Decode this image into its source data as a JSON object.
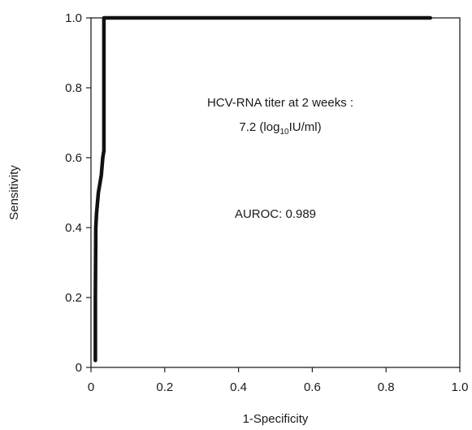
{
  "chart_data": {
    "type": "line",
    "title": "",
    "xlabel": "1-Specificity",
    "ylabel": "Sensitivity",
    "xlim": [
      0,
      1.0
    ],
    "ylim": [
      0,
      1.0
    ],
    "xticks": [
      "0",
      "0.2",
      "0.4",
      "0.6",
      "0.8",
      "1.0"
    ],
    "yticks": [
      "0",
      "0.2",
      "0.4",
      "0.6",
      "0.8",
      "1.0"
    ],
    "grid": false,
    "series": [
      {
        "x": [
          0.012,
          0.012,
          0.013,
          0.015,
          0.02,
          0.028,
          0.032,
          0.035,
          0.035,
          0.92
        ],
        "y": [
          0.02,
          0.2,
          0.4,
          0.44,
          0.5,
          0.55,
          0.6,
          0.62,
          1.0,
          1.0
        ]
      }
    ],
    "annotations": {
      "line1": "HCV-RNA titer at 2 weeks :",
      "line2_pre": "7.2 (log",
      "line2_sub": "10",
      "line2_post": "IU/ml)",
      "auroc": "AUROC: 0.989"
    },
    "line_color": "#111111"
  }
}
